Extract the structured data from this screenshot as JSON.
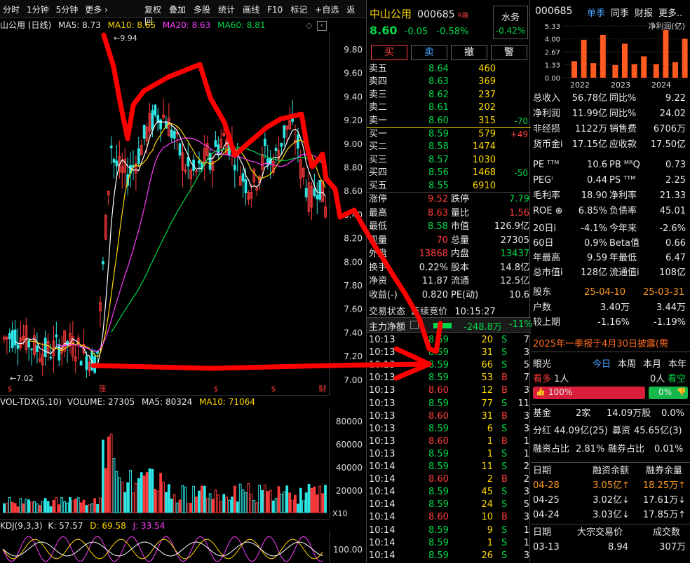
{
  "toolbar": {
    "left_tabs": [
      "分时",
      "1分钟",
      "5分钟",
      "更多 ›"
    ],
    "right_tools": [
      "复权",
      "叠加",
      "多股",
      "统计",
      "画线",
      "F10",
      "标记",
      "+自选",
      "返回"
    ]
  },
  "kline": {
    "title": "山公用 (日线)",
    "ma5": "MA5: 8.73",
    "ma10": "MA10: 8.65",
    "ma20": "MA20: 8.63",
    "ma60": "MA60: 8.81",
    "high_label": "9.94",
    "low_label": "7.02",
    "price_ticks": [
      "9.80",
      "9.60",
      "9.40",
      "9.20",
      "9.00",
      "8.80",
      "8.60",
      "8.40",
      "8.20",
      "8.00",
      "7.80",
      "7.60",
      "7.40",
      "7.20",
      "7.00"
    ],
    "markers": [
      "$",
      "涨",
      "$",
      "$",
      "财"
    ],
    "colors": {
      "ma5": "#ffffff",
      "ma10": "#ffd800",
      "ma20": "#ff3cff",
      "ma60": "#00d84a",
      "up": "#ff3b3b",
      "down": "#2ee6e6"
    }
  },
  "volume": {
    "header": "VOL-TDX(5,10)",
    "volume": "VOLUME: 27305",
    "ma5": "MA5: 80324",
    "ma10": "MA10: 71064",
    "ticks": [
      "80000",
      "60000",
      "40000",
      "20000"
    ],
    "unit": "X10"
  },
  "kdj": {
    "header": "KDJ(9,3,3)",
    "k": "K: 57.57",
    "d": "D: 69.58",
    "j": "J: 33.54",
    "tick": "100.00"
  },
  "quote": {
    "name": "中山公用",
    "code": "000685",
    "tag": "R融",
    "price": "8.60",
    "change": "-0.05",
    "change_pct": "-0.58%",
    "sector": "水务",
    "sector_pct": "-0.42%",
    "buttons": [
      "买",
      "卖",
      "撤",
      "警"
    ]
  },
  "order_book": {
    "asks": [
      {
        "label": "卖五",
        "price": "8.64",
        "vol": "460",
        "delta": ""
      },
      {
        "label": "卖四",
        "price": "8.63",
        "vol": "369",
        "delta": ""
      },
      {
        "label": "卖三",
        "price": "8.62",
        "vol": "237",
        "delta": ""
      },
      {
        "label": "卖二",
        "price": "8.61",
        "vol": "202",
        "delta": ""
      },
      {
        "label": "卖一",
        "price": "8.60",
        "vol": "315",
        "delta": "-70"
      }
    ],
    "bids": [
      {
        "label": "买一",
        "price": "8.59",
        "vol": "579",
        "delta": "+49"
      },
      {
        "label": "买二",
        "price": "8.58",
        "vol": "1474",
        "delta": ""
      },
      {
        "label": "买三",
        "price": "8.57",
        "vol": "1030",
        "delta": ""
      },
      {
        "label": "买四",
        "price": "8.56",
        "vol": "1468",
        "delta": "-50"
      },
      {
        "label": "买五",
        "price": "8.55",
        "vol": "6910",
        "delta": ""
      }
    ]
  },
  "stats": [
    {
      "l1": "涨停",
      "v1": "9.52",
      "l2": "跌停",
      "v2": "7.79"
    },
    {
      "l1": "最高",
      "v1": "8.63",
      "l2": "量比",
      "v2": "1.56"
    },
    {
      "l1": "最低",
      "v1": "8.58",
      "l2": "市值",
      "v2": "126.9亿"
    },
    {
      "l1": "现量",
      "v1": "70",
      "l2": "总量",
      "v2": "27305"
    },
    {
      "l1": "外盘",
      "v1": "13868",
      "l2": "内盘",
      "v2": "13437"
    },
    {
      "l1": "换手",
      "v1": "0.22%",
      "l2": "股本",
      "v2": "14.8亿"
    },
    {
      "l1": "净资",
      "v1": "11.87",
      "l2": "流通",
      "v2": "12.5亿"
    },
    {
      "l1": "收益(-)",
      "v1": "0.820",
      "l2": "PE(动)",
      "v2": "10.6"
    }
  ],
  "trade_status": {
    "label": "交易状态",
    "value": "连续竞价",
    "time": "10:15:27"
  },
  "main_flow": {
    "label": "主力净额",
    "value": "-248.8万",
    "pct": "-11%"
  },
  "ticks": [
    {
      "t": "10:13",
      "p": "8.59",
      "v": "20",
      "s": "S",
      "n": "7"
    },
    {
      "t": "10:13",
      "p": "8.59",
      "v": "31",
      "s": "S",
      "n": "3"
    },
    {
      "t": "10:13",
      "p": "8.59",
      "v": "66",
      "s": "S",
      "n": "5"
    },
    {
      "t": "10:13",
      "p": "8.59",
      "v": "53",
      "s": "B",
      "n": "7"
    },
    {
      "t": "10:13",
      "p": "8.60",
      "v": "12",
      "s": "B",
      "n": "3"
    },
    {
      "t": "10:13",
      "p": "8.59",
      "v": "77",
      "s": "S",
      "n": "11"
    },
    {
      "t": "10:13",
      "p": "8.60",
      "v": "31",
      "s": "B",
      "n": "3"
    },
    {
      "t": "10:13",
      "p": "8.59",
      "v": "6",
      "s": "S",
      "n": "3"
    },
    {
      "t": "10:13",
      "p": "8.60",
      "v": "1",
      "s": "B",
      "n": "1"
    },
    {
      "t": "10:13",
      "p": "8.59",
      "v": "1",
      "s": "S",
      "n": "1"
    },
    {
      "t": "10:14",
      "p": "8.59",
      "v": "11",
      "s": "S",
      "n": "2"
    },
    {
      "t": "10:14",
      "p": "8.60",
      "v": "2",
      "s": "B",
      "n": "2"
    },
    {
      "t": "10:14",
      "p": "8.59",
      "v": "45",
      "s": "S",
      "n": "3"
    },
    {
      "t": "10:14",
      "p": "8.59",
      "v": "24",
      "s": "S",
      "n": "5"
    },
    {
      "t": "10:14",
      "p": "8.60",
      "v": "10",
      "s": "B",
      "n": "3"
    },
    {
      "t": "10:14",
      "p": "8.59",
      "v": "9",
      "s": "S",
      "n": "1"
    },
    {
      "t": "10:14",
      "p": "8.59",
      "v": "1",
      "s": "S",
      "n": "1"
    },
    {
      "t": "10:14",
      "p": "8.59",
      "v": "26",
      "s": "S",
      "n": "3"
    }
  ],
  "finance": {
    "code": "000685",
    "tabs": [
      "单季",
      "同季",
      "财报",
      "更多.."
    ],
    "chart_title": "净利润(亿)",
    "y_ticks": [
      "5.33",
      "4.00",
      "2.67",
      "1.33",
      "0.00"
    ],
    "years": [
      "2022",
      "2023",
      "2024"
    ],
    "rows": [
      {
        "l1": "总收入",
        "v1": "56.78亿",
        "l2": "同比%",
        "v2": "9.22"
      },
      {
        "l1": "净利润",
        "v1": "11.99亿",
        "l2": "同比%",
        "v2": "24.02"
      },
      {
        "l1": "非经损",
        "v1": "1122万",
        "l2": "销售费",
        "v2": "6706万"
      },
      {
        "l1": "货币金i",
        "v1": "17.15亿",
        "l2": "应收款",
        "v2": "17.50亿"
      }
    ],
    "val_rows": [
      {
        "l1": "PE ᵀᵀᴹ",
        "v1": "10.6",
        "l2": "PB ᴹᴿQ",
        "v2": "0.73"
      },
      {
        "l1": "PEGⁱ",
        "v1": "0.44",
        "l2": "PS ᵀᵀᴹ",
        "v2": "2.25"
      },
      {
        "l1": "毛利率",
        "v1": "18.90",
        "l2": "净利率",
        "v2": "21.33"
      },
      {
        "l1": "ROE ⊕",
        "v1": "6.85%",
        "l2": "负债率",
        "v2": "45.01"
      }
    ],
    "perf_rows": [
      {
        "l1": "20日i",
        "v1": "-4.1%",
        "l2": "今年来",
        "v2": "-2.6%"
      },
      {
        "l1": "60日",
        "v1": "0.9%",
        "l2": "Beta值",
        "v2": "0.66"
      },
      {
        "l1": "年最高",
        "v1": "9.59",
        "l2": "年最低",
        "v2": "6.47"
      },
      {
        "l1": "总市值i",
        "v1": "128亿",
        "l2": "流通值i",
        "v2": "108亿"
      }
    ],
    "holders": {
      "label": "股东",
      "d1": "25-04-10",
      "d2": "25-03-31",
      "rows": [
        {
          "l": "户数",
          "v1": "3.40万",
          "v2": "3.44万"
        },
        {
          "l": "较上期",
          "v1": "-1.16%",
          "v2": "-1.19%"
        }
      ]
    },
    "notice": "2025年一季报于4月30日披露(需",
    "eye": {
      "label": "眼光",
      "tabs": [
        "今日",
        "本周",
        "本月",
        "本年"
      ],
      "bull": "看多",
      "bull_n": "1人",
      "bear_n": "0人",
      "bear": "看空",
      "bull_pct": "100%",
      "bear_pct": "0%"
    },
    "fund": {
      "l": "基金",
      "v1": "2家",
      "v2": "14.09万股",
      "v3": "0.0%"
    },
    "div": {
      "l": "分红",
      "v1": "44.09亿(25)",
      "l2": "募资",
      "v2": "45.65亿(3)"
    },
    "margin": {
      "l": "融资占比",
      "v1": "2.81%",
      "l2": "融券占比",
      "v2": "0.01%"
    },
    "margin_table": {
      "headers": [
        "日期",
        "融资余额",
        "融券余量"
      ],
      "rows": [
        {
          "d": "04-28",
          "a": "3.05亿↑",
          "b": "18.25万↑"
        },
        {
          "d": "04-25",
          "a": "3.02亿↓",
          "b": "17.61万↓"
        },
        {
          "d": "04-24",
          "a": "3.03亿↓",
          "b": "17.85万↑"
        }
      ]
    },
    "block_table": {
      "headers": [
        "日期",
        "大宗交易价",
        "成交数"
      ],
      "rows": [
        {
          "d": "03-13",
          "p": "8.94",
          "n": "307万"
        }
      ]
    }
  }
}
